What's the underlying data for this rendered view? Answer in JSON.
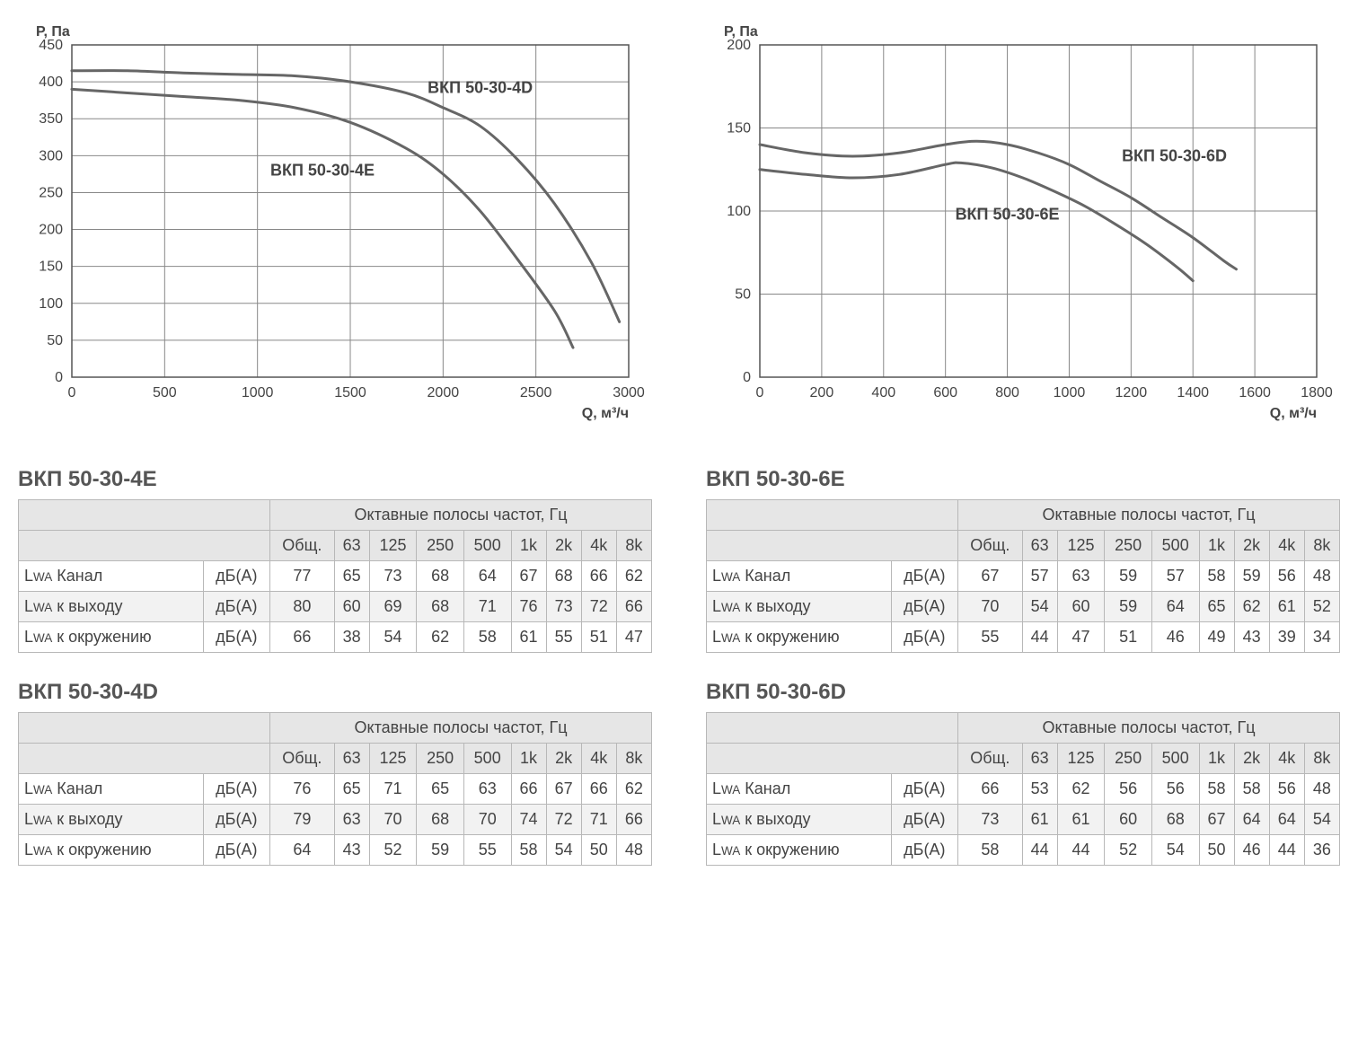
{
  "colors": {
    "axis": "#555555",
    "grid": "#888888",
    "curve": "#666666",
    "text": "#444444",
    "table_header_bg": "#e6e6e6",
    "table_alt_bg": "#f2f2f2",
    "table_border": "#b8b8b8"
  },
  "typography": {
    "axis_label_fontsize": 16,
    "tick_fontsize": 16,
    "curve_label_fontsize": 18,
    "table_title_fontsize": 24,
    "table_fontsize": 18
  },
  "charts": [
    {
      "id": "chart-left",
      "ylabel": "Р, Па",
      "xlabel": "Q, м³/ч",
      "xlim": [
        0,
        3000
      ],
      "ylim": [
        0,
        450
      ],
      "xtick_step": 500,
      "ytick_step": 50,
      "line_width": 3,
      "curves": [
        {
          "label": "ВКП 50-30-4D",
          "label_pos": {
            "x": 2200,
            "y": 385
          },
          "points": [
            [
              0,
              415
            ],
            [
              300,
              415
            ],
            [
              600,
              412
            ],
            [
              900,
              410
            ],
            [
              1200,
              408
            ],
            [
              1500,
              400
            ],
            [
              1800,
              385
            ],
            [
              2000,
              365
            ],
            [
              2200,
              340
            ],
            [
              2400,
              295
            ],
            [
              2600,
              235
            ],
            [
              2800,
              155
            ],
            [
              2950,
              75
            ]
          ]
        },
        {
          "label": "ВКП 50-30-4E",
          "label_pos": {
            "x": 1350,
            "y": 273
          },
          "points": [
            [
              0,
              390
            ],
            [
              300,
              385
            ],
            [
              600,
              380
            ],
            [
              900,
              375
            ],
            [
              1200,
              365
            ],
            [
              1500,
              345
            ],
            [
              1800,
              310
            ],
            [
              2000,
              275
            ],
            [
              2200,
              225
            ],
            [
              2400,
              160
            ],
            [
              2600,
              90
            ],
            [
              2700,
              40
            ]
          ]
        }
      ]
    },
    {
      "id": "chart-right",
      "ylabel": "Р, Па",
      "xlabel": "Q, м³/ч",
      "xlim": [
        0,
        1800
      ],
      "ylim": [
        0,
        200
      ],
      "xtick_step": 200,
      "ytick_step": 50,
      "line_width": 3,
      "curves": [
        {
          "label": "ВКП 50-30-6D",
          "label_pos": {
            "x": 1340,
            "y": 130
          },
          "points": [
            [
              0,
              140
            ],
            [
              150,
              135
            ],
            [
              300,
              133
            ],
            [
              450,
              135
            ],
            [
              600,
              140
            ],
            [
              700,
              142
            ],
            [
              800,
              140
            ],
            [
              900,
              135
            ],
            [
              1000,
              128
            ],
            [
              1100,
              118
            ],
            [
              1200,
              108
            ],
            [
              1300,
              96
            ],
            [
              1400,
              84
            ],
            [
              1500,
              70
            ],
            [
              1540,
              65
            ]
          ]
        },
        {
          "label": "ВКП 50-30-6E",
          "label_pos": {
            "x": 800,
            "y": 95
          },
          "points": [
            [
              0,
              125
            ],
            [
              150,
              122
            ],
            [
              300,
              120
            ],
            [
              450,
              122
            ],
            [
              600,
              128
            ],
            [
              650,
              129
            ],
            [
              750,
              126
            ],
            [
              850,
              120
            ],
            [
              950,
              112
            ],
            [
              1050,
              103
            ],
            [
              1150,
              92
            ],
            [
              1250,
              80
            ],
            [
              1350,
              66
            ],
            [
              1400,
              58
            ]
          ]
        }
      ]
    }
  ],
  "table_common": {
    "group_header": "Октавные полосы частот, Гц",
    "col_headers": [
      "Общ.",
      "63",
      "125",
      "250",
      "500",
      "1k",
      "2k",
      "4k",
      "8k"
    ],
    "unit_label": "дБ(A)",
    "row_labels": [
      "Lᴡᴀ Канал",
      "Lᴡᴀ к выходу",
      "Lᴡᴀ к окружению"
    ]
  },
  "tables": [
    {
      "title": "ВКП 50-30-4E",
      "rows": [
        [
          77,
          65,
          73,
          68,
          64,
          67,
          68,
          66,
          62
        ],
        [
          80,
          60,
          69,
          68,
          71,
          76,
          73,
          72,
          66
        ],
        [
          66,
          38,
          54,
          62,
          58,
          61,
          55,
          51,
          47
        ]
      ]
    },
    {
      "title": "ВКП 50-30-6E",
      "rows": [
        [
          67,
          57,
          63,
          59,
          57,
          58,
          59,
          56,
          48
        ],
        [
          70,
          54,
          60,
          59,
          64,
          65,
          62,
          61,
          52
        ],
        [
          55,
          44,
          47,
          51,
          46,
          49,
          43,
          39,
          34
        ]
      ]
    },
    {
      "title": "ВКП 50-30-4D",
      "rows": [
        [
          76,
          65,
          71,
          65,
          63,
          66,
          67,
          66,
          62
        ],
        [
          79,
          63,
          70,
          68,
          70,
          74,
          72,
          71,
          66
        ],
        [
          64,
          43,
          52,
          59,
          55,
          58,
          54,
          50,
          48
        ]
      ]
    },
    {
      "title": "ВКП 50-30-6D",
      "rows": [
        [
          66,
          53,
          62,
          56,
          56,
          58,
          58,
          56,
          48
        ],
        [
          73,
          61,
          61,
          60,
          68,
          67,
          64,
          64,
          54
        ],
        [
          58,
          44,
          44,
          52,
          54,
          50,
          46,
          44,
          36
        ]
      ]
    }
  ]
}
